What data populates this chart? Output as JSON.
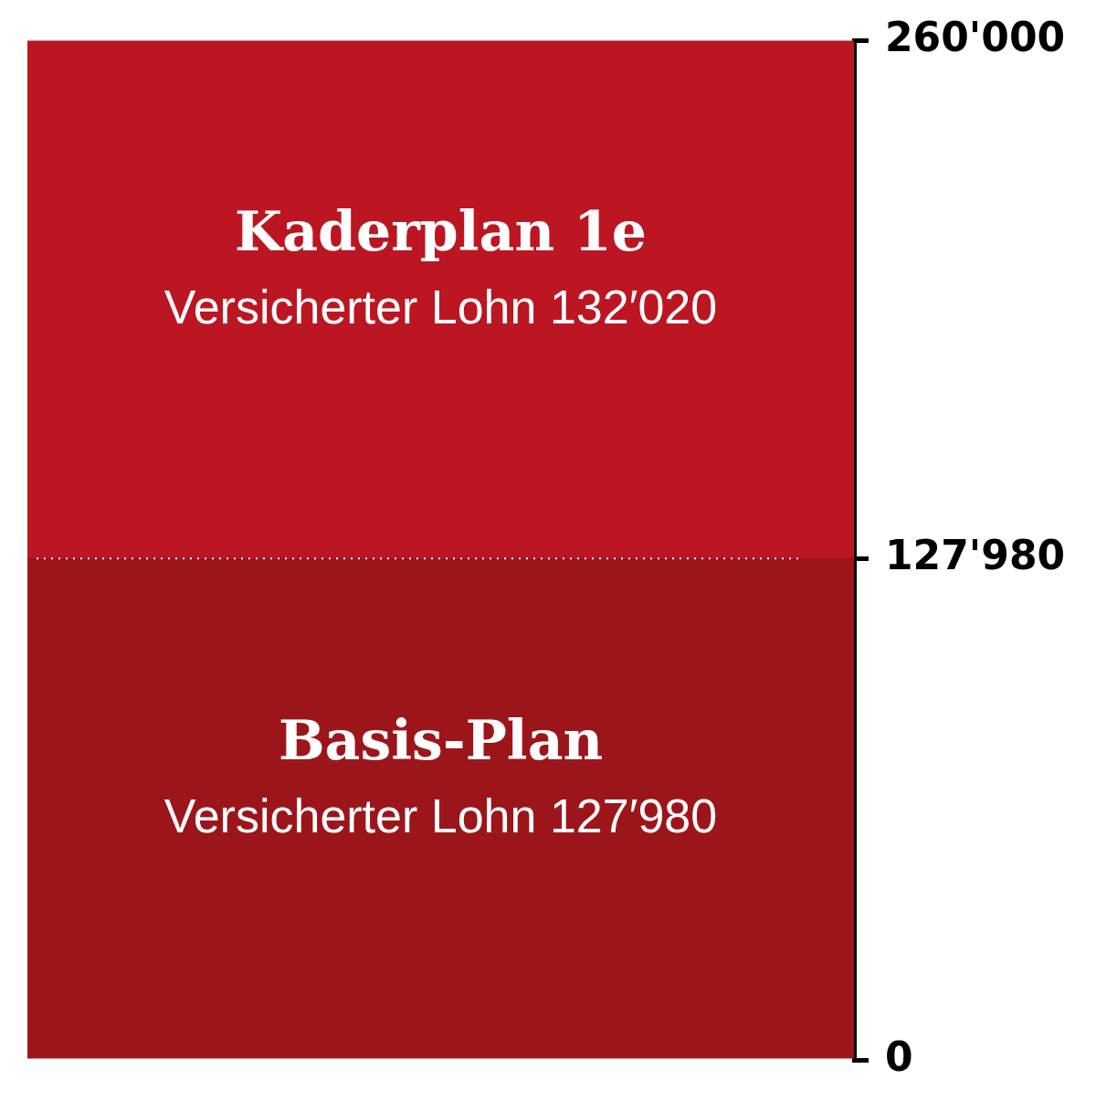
{
  "chart_data": {
    "type": "bar",
    "stacked": true,
    "categories": [
      null
    ],
    "series": [
      {
        "name": "Basis-Plan",
        "color": "#9c151b",
        "values": [
          127980
        ],
        "value_labels": [
          "Versicherter Lohn 127′980"
        ]
      },
      {
        "name": "Kaderplan 1e",
        "color": "#bb1622",
        "values": [
          132020
        ],
        "value_labels": [
          "Versicherter Lohn 132′020"
        ]
      }
    ],
    "ylim": [
      0,
      260000
    ],
    "yticks": [
      0,
      {
        "value": 127980,
        "label": "127'980"
      },
      {
        "value": 260000,
        "label": "260'000"
      }
    ],
    "ref_lines": [
      {
        "axis": "y",
        "value": 127980,
        "color": "#ffffff",
        "line_style": "dotted"
      }
    ],
    "grid": false,
    "legend": false,
    "tick_labels": "y"
  }
}
